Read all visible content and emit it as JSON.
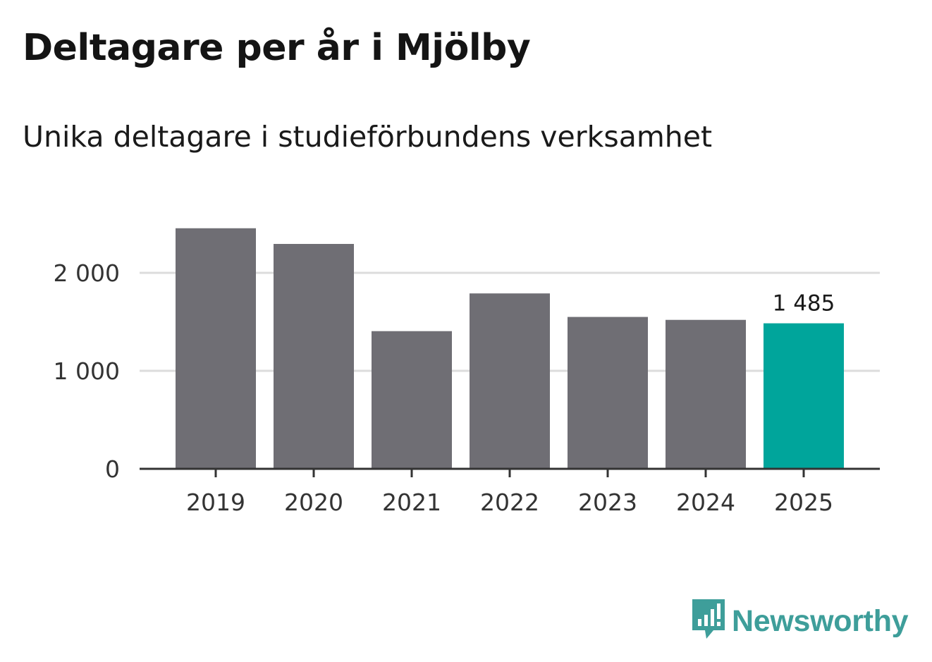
{
  "chart_data": {
    "type": "bar",
    "title": "Deltagare per år i Mjölby",
    "subtitle": "Unika deltagare i studieförbundens verksamhet",
    "categories": [
      "2019",
      "2020",
      "2021",
      "2022",
      "2023",
      "2024",
      "2025"
    ],
    "values": [
      2455,
      2295,
      1405,
      1790,
      1550,
      1520,
      1485
    ],
    "highlight_index": 6,
    "highlight_label": "1 485",
    "ylim": [
      0,
      2500
    ],
    "yticks": [
      0,
      1000,
      2000
    ],
    "ytick_labels": [
      "0",
      "1 000",
      "2 000"
    ],
    "xlabel": "",
    "ylabel": "",
    "grid": true,
    "colors": {
      "bar": "#6f6e74",
      "highlight": "#00a59b",
      "grid": "#dcdcdc",
      "axis": "#333333"
    }
  },
  "logo": {
    "text": "Newsworthy",
    "icon": "newsworthy-chart-bubble-icon",
    "color": "#3e9e9a"
  }
}
